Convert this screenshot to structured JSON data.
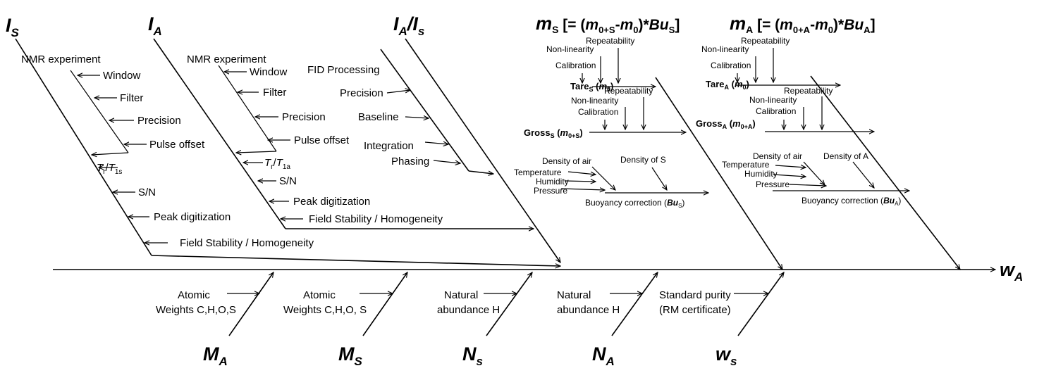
{
  "spine": {
    "result": "w",
    "result_sub": "A"
  },
  "top": {
    "IS": {
      "main": "I",
      "sub": "S"
    },
    "IA": {
      "main": "I",
      "sub": "A"
    },
    "IAIS": {
      "main": "I",
      "sub1": "A",
      "slash": "/",
      "main2": "I",
      "sub2": "s"
    },
    "mS": {
      "main": "m",
      "sub": "S",
      "rest1": " [= (",
      "m1": "m",
      "m1sub": "0+S",
      "dash": "-",
      "m2": "m",
      "m2sub": "0",
      "rest2": ")*",
      "bu": "Bu",
      "busub": "S",
      "close": "]"
    },
    "mA": {
      "main": "m",
      "sub": "A",
      "rest1": " [= (",
      "m1": "m",
      "m1sub": "0+A",
      "dash": "-",
      "m2": "m",
      "m2sub": "0",
      "rest2": ")*",
      "bu": "Bu",
      "busub": "A",
      "close": "]"
    }
  },
  "bottom": {
    "MA": {
      "main": "M",
      "sub": "A"
    },
    "MS": {
      "main": "M",
      "sub": "S"
    },
    "NS": {
      "main": "N",
      "sub": "s"
    },
    "NA": {
      "main": "N",
      "sub": "A"
    },
    "wS": {
      "main": "w",
      "sub": "s"
    }
  },
  "IS_branch": {
    "header": "NMR experiment",
    "window": "Window",
    "filter": "Filter",
    "precision": "Precision",
    "pulse": "Pulse offset",
    "tr": "T",
    "tr_sub": "r",
    "tr_slash": "/",
    "t1": "T",
    "t1_sub": "1s",
    "sn": "S/N",
    "peak": "Peak digitization",
    "field": "Field Stability / Homogeneity"
  },
  "IA_branch": {
    "header": "NMR experiment",
    "window": "Window",
    "filter": "Filter",
    "precision": "Precision",
    "pulse": "Pulse offset",
    "tr": "T",
    "tr_sub": "r",
    "tr_slash": "/",
    "t1": "T",
    "t1_sub": "1a",
    "sn": "S/N",
    "peak": "Peak digitization",
    "field": "Field Stability / Homogeneity"
  },
  "fid": {
    "header": "FID Processing",
    "precision": "Precision",
    "baseline": "Baseline",
    "integration": "Integration",
    "phasing": "Phasing"
  },
  "mS_branch": {
    "repeat1": "Repeatability",
    "nonlin1": "Non-linearity",
    "calib1": "Calibration",
    "tare": "Tare",
    "tare_sub": "S",
    "tare_open": " (",
    "tare_m": "m",
    "tare_msub": "0",
    "tare_close": ")",
    "repeat2": "Repeatability",
    "nonlin2": "Non-linearity",
    "calib2": "Calibration",
    "gross": "Gross",
    "gross_sub": "S",
    "gross_open": " (",
    "gross_m": "m",
    "gross_msub": "0+S",
    "gross_close": ")",
    "density_air": "Density of air",
    "density_x": "Density of S",
    "temperature": "Temperature",
    "humidity": "Humidity",
    "pressure": "Pressure",
    "buoy": "Buoyancy correction (",
    "buoy_m": "Bu",
    "buoy_sub": "S",
    "buoy_close": ")"
  },
  "mA_branch": {
    "repeat1": "Repeatability",
    "nonlin1": "Non-linearity",
    "calib1": "Calibration",
    "tare": "Tare",
    "tare_sub": "A",
    "tare_open": " (",
    "tare_m": "m",
    "tare_msub": "0",
    "tare_close": ")",
    "repeat2": "Repeatability",
    "nonlin2": "Non-linearity",
    "calib2": "Calibration",
    "gross": "Gross",
    "gross_sub": "A",
    "gross_open": " (",
    "gross_m": "m",
    "gross_msub": "0+A",
    "gross_close": ")",
    "density_air": "Density of air",
    "density_x": "Density of A",
    "temperature": "Temperature",
    "humidity": "Humidity",
    "pressure": "Pressure",
    "buoy": "Buoyancy correction (",
    "buoy_m": "Bu",
    "buoy_sub": "A",
    "buoy_close": ")"
  },
  "bottom_labels": {
    "MA_l1": "Atomic",
    "MA_l2": "Weights C,H,O,S",
    "MS_l1": "Atomic",
    "MS_l2": "Weights C,H,O, S",
    "NS_l1": "Natural",
    "NS_l2": "abundance H",
    "NA_l1": "Natural",
    "NA_l2": "abundance H",
    "wS_l1": "Standard purity",
    "wS_l2": "(RM certificate)"
  }
}
